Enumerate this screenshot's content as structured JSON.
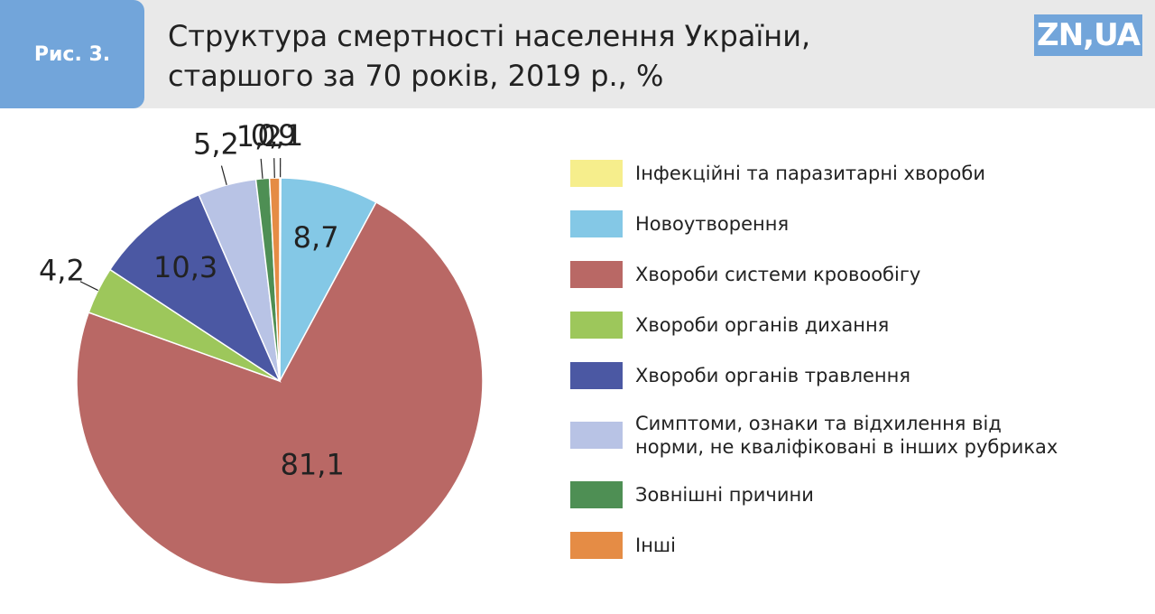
{
  "figure_label": "Рис. 3.",
  "logo": "ZN,UA",
  "chart_data": {
    "type": "pie",
    "title": [
      "Структура смертності населення України,",
      "старшого за 70 років, 2019 р., %"
    ],
    "categories": [
      "Інфекційні та паразитарні хвороби",
      "Новоутворення",
      "Хвороби системи кровообігу",
      "Хвороби органів дихання",
      "Хвороби органів травлення",
      "Симптоми, ознаки та відхилення від норми, не кваліфіковані в інших рубриках",
      "Зовнішні причини",
      "Інші"
    ],
    "values": [
      0.1,
      8.7,
      81.1,
      4.2,
      10.3,
      5.2,
      1.2,
      0.9
    ],
    "value_labels": [
      "0,1",
      "8,7",
      "81,1",
      "4,2",
      "10,3",
      "5,2",
      "1,2",
      "0,9"
    ],
    "colors": [
      "#f6ee8c",
      "#84c8e6",
      "#b96865",
      "#9dc75b",
      "#4b58a3",
      "#b8c3e5",
      "#4e8f54",
      "#e58c45"
    ],
    "legend": "right"
  }
}
